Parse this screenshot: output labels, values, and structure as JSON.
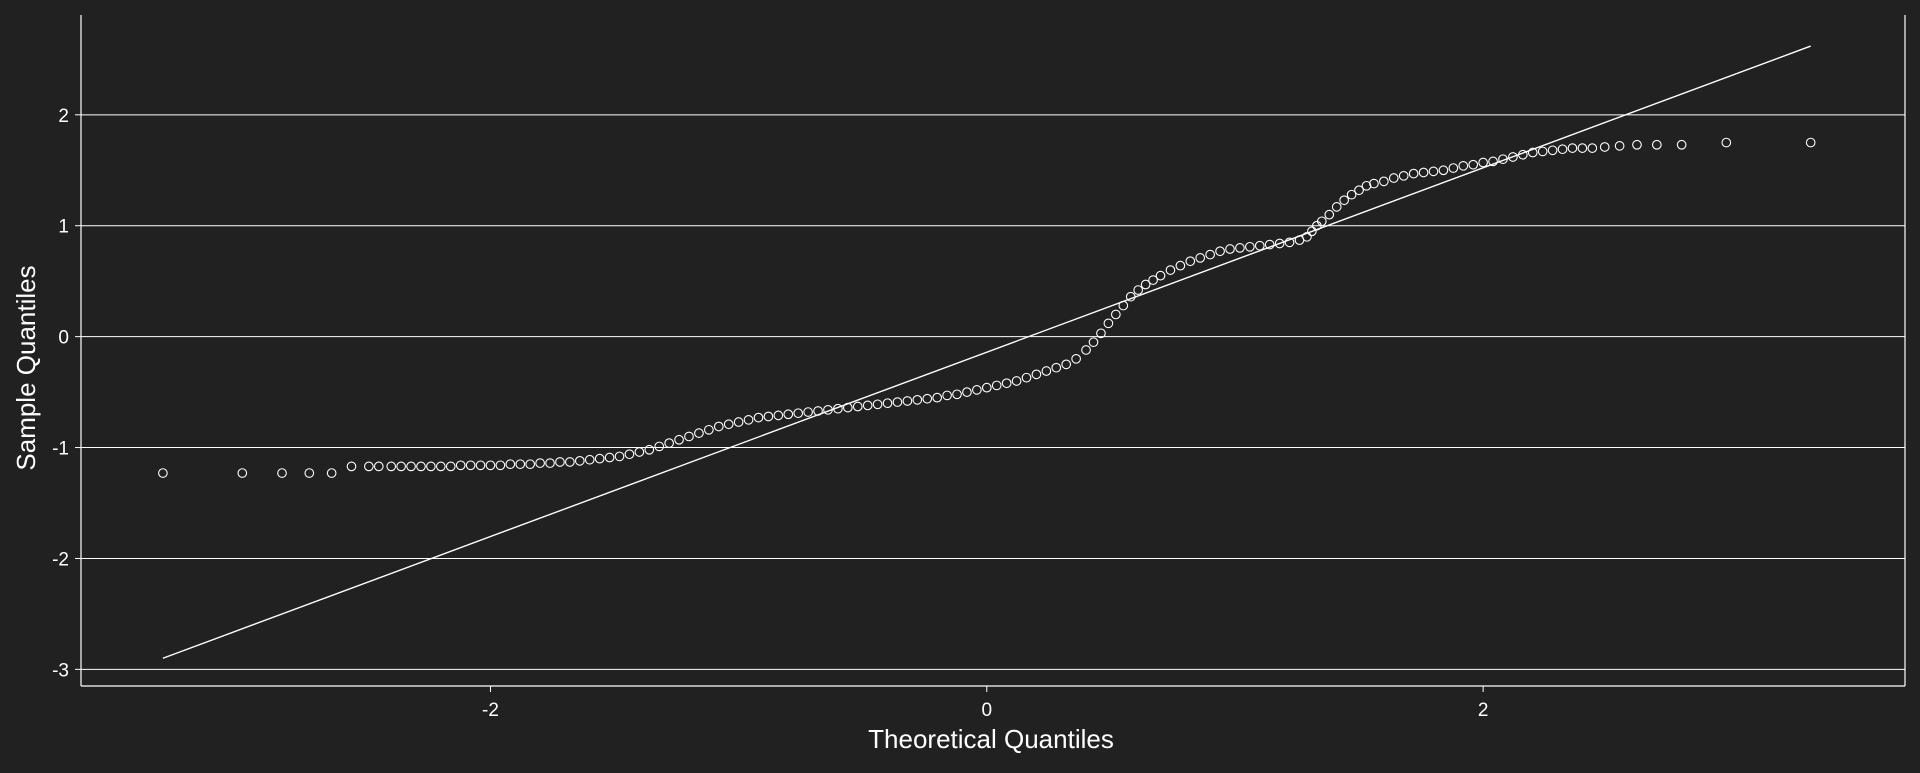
{
  "colors": {
    "background": "#212121",
    "foreground": "#ffffff",
    "grid": "#ffffff",
    "point_stroke": "#ffffff"
  },
  "chart_data": {
    "type": "scatter",
    "title": "",
    "xlabel": "Theoretical Quantiles",
    "ylabel": "Sample Quantiles",
    "xlim": [
      -3.65,
      3.7
    ],
    "ylim": [
      -3.15,
      2.9
    ],
    "x_ticks": [
      -2,
      0,
      2
    ],
    "x_tick_labels": [
      "-2",
      "0",
      "2"
    ],
    "y_ticks": [
      -3,
      -2,
      -1,
      0,
      1,
      2
    ],
    "y_tick_labels": [
      "-3",
      "-2",
      "-1",
      "0",
      "1",
      "2"
    ],
    "grid": "horizontal",
    "legend": "none",
    "reference_line": {
      "x": [
        -3.32,
        3.32
      ],
      "y": [
        -2.9,
        2.62
      ]
    },
    "series": [
      {
        "type": "points",
        "x": [
          -3.32,
          -3.0,
          -2.84,
          -2.73,
          -2.64,
          -2.56,
          -2.49,
          -2.45,
          -2.4,
          -2.36,
          -2.32,
          -2.28,
          -2.24,
          -2.2,
          -2.16,
          -2.12,
          -2.08,
          -2.04,
          -2.0,
          -1.96,
          -1.92,
          -1.88,
          -1.84,
          -1.8,
          -1.76,
          -1.72,
          -1.68,
          -1.64,
          -1.6,
          -1.56,
          -1.52,
          -1.48,
          -1.44,
          -1.4,
          -1.36,
          -1.32,
          -1.28,
          -1.24,
          -1.2,
          -1.16,
          -1.12,
          -1.08,
          -1.04,
          -1.0,
          -0.96,
          -0.92,
          -0.88,
          -0.84,
          -0.8,
          -0.76,
          -0.72,
          -0.68,
          -0.64,
          -0.6,
          -0.56,
          -0.52,
          -0.48,
          -0.44,
          -0.4,
          -0.36,
          -0.32,
          -0.28,
          -0.24,
          -0.2,
          -0.16,
          -0.12,
          -0.08,
          -0.04,
          0.0,
          0.04,
          0.08,
          0.12,
          0.16,
          0.2,
          0.24,
          0.28,
          0.32,
          0.36,
          0.4,
          0.43,
          0.46,
          0.49,
          0.52,
          0.55,
          0.58,
          0.61,
          0.64,
          0.67,
          0.7,
          0.74,
          0.78,
          0.82,
          0.86,
          0.9,
          0.94,
          0.98,
          1.02,
          1.06,
          1.1,
          1.14,
          1.18,
          1.22,
          1.26,
          1.29,
          1.31,
          1.33,
          1.35,
          1.38,
          1.41,
          1.44,
          1.47,
          1.5,
          1.53,
          1.56,
          1.6,
          1.64,
          1.68,
          1.72,
          1.76,
          1.8,
          1.84,
          1.88,
          1.92,
          1.96,
          2.0,
          2.04,
          2.08,
          2.12,
          2.16,
          2.2,
          2.24,
          2.28,
          2.32,
          2.36,
          2.4,
          2.44,
          2.49,
          2.55,
          2.62,
          2.7,
          2.8,
          2.98,
          3.32
        ],
        "y": [
          -1.23,
          -1.23,
          -1.23,
          -1.23,
          -1.23,
          -1.17,
          -1.17,
          -1.17,
          -1.17,
          -1.17,
          -1.17,
          -1.17,
          -1.17,
          -1.17,
          -1.17,
          -1.16,
          -1.16,
          -1.16,
          -1.16,
          -1.16,
          -1.15,
          -1.15,
          -1.15,
          -1.14,
          -1.14,
          -1.13,
          -1.13,
          -1.12,
          -1.11,
          -1.1,
          -1.09,
          -1.08,
          -1.06,
          -1.04,
          -1.02,
          -0.99,
          -0.96,
          -0.93,
          -0.9,
          -0.87,
          -0.84,
          -0.81,
          -0.79,
          -0.77,
          -0.75,
          -0.73,
          -0.72,
          -0.71,
          -0.7,
          -0.69,
          -0.68,
          -0.67,
          -0.66,
          -0.65,
          -0.64,
          -0.63,
          -0.62,
          -0.61,
          -0.6,
          -0.59,
          -0.58,
          -0.57,
          -0.56,
          -0.55,
          -0.53,
          -0.52,
          -0.5,
          -0.48,
          -0.46,
          -0.44,
          -0.42,
          -0.4,
          -0.37,
          -0.34,
          -0.31,
          -0.28,
          -0.25,
          -0.2,
          -0.12,
          -0.05,
          0.03,
          0.12,
          0.2,
          0.28,
          0.36,
          0.42,
          0.47,
          0.51,
          0.55,
          0.6,
          0.64,
          0.68,
          0.71,
          0.74,
          0.77,
          0.79,
          0.8,
          0.81,
          0.82,
          0.83,
          0.84,
          0.85,
          0.87,
          0.9,
          0.95,
          1.0,
          1.04,
          1.1,
          1.17,
          1.23,
          1.28,
          1.32,
          1.36,
          1.38,
          1.4,
          1.43,
          1.45,
          1.47,
          1.48,
          1.49,
          1.5,
          1.52,
          1.54,
          1.55,
          1.57,
          1.58,
          1.6,
          1.62,
          1.64,
          1.66,
          1.67,
          1.68,
          1.69,
          1.7,
          1.7,
          1.7,
          1.71,
          1.72,
          1.73,
          1.73,
          1.73,
          1.75,
          1.75
        ]
      }
    ]
  }
}
